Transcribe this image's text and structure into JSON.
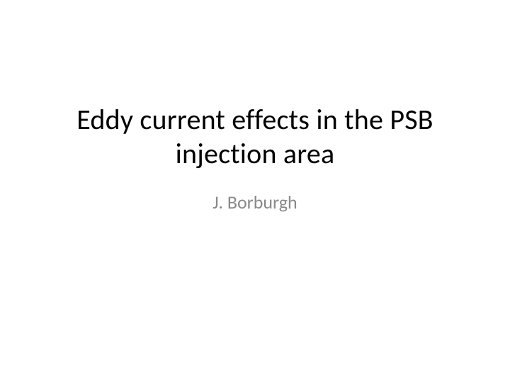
{
  "slide": {
    "title": "Eddy current effects in the PSB injection area",
    "author": "J. Borburgh",
    "background_color": "#ffffff",
    "title_color": "#000000",
    "author_color": "#898989",
    "title_fontsize": 40,
    "author_fontsize": 26
  }
}
